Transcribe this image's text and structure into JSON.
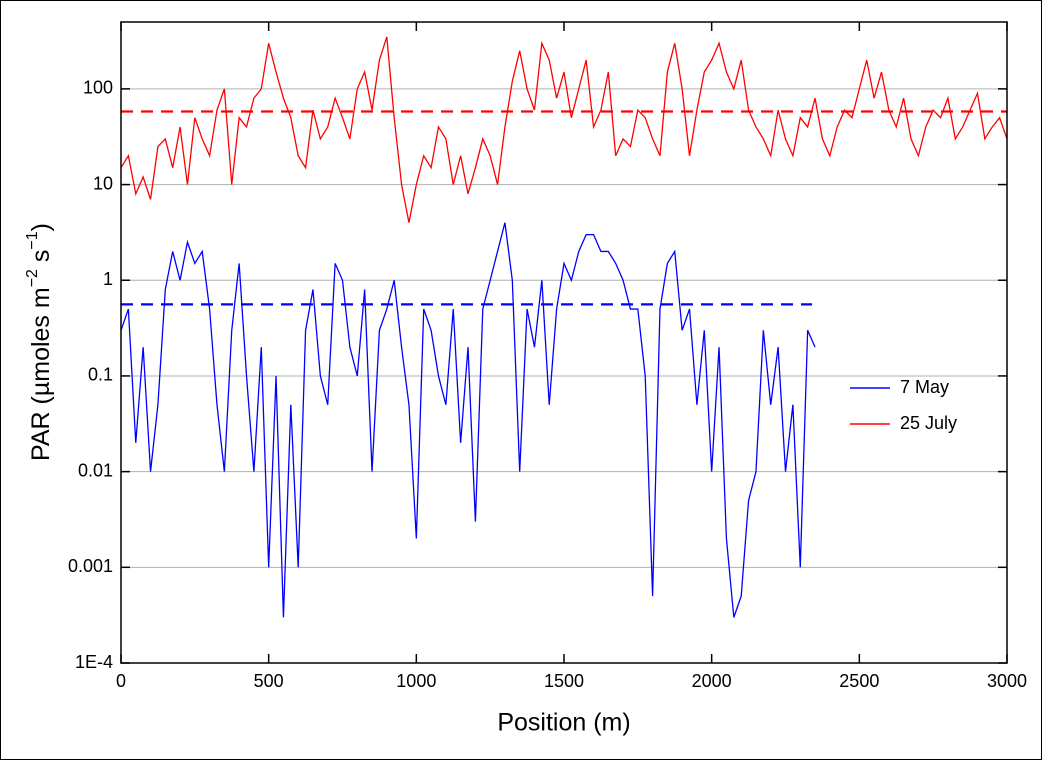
{
  "chart_data": {
    "type": "line",
    "xlabel": "Position (m)",
    "ylabel": [
      "PAR (µmoles m",
      "−2",
      " s",
      "−1",
      ")"
    ],
    "xlim": [
      0,
      3000
    ],
    "xticks": [
      0,
      500,
      1000,
      1500,
      2000,
      2500,
      3000
    ],
    "ylim": [
      0.0001,
      500
    ],
    "log_y": true,
    "yticks": [
      {
        "value": 0.0001,
        "label": "1E-4"
      },
      0.001,
      0.01,
      0.1,
      1,
      10,
      100
    ],
    "grid": true,
    "legend": "right",
    "series": [
      {
        "name": "7 May",
        "color": "#0000ff",
        "x": [
          0,
          25,
          50,
          75,
          100,
          125,
          150,
          175,
          200,
          225,
          250,
          275,
          300,
          325,
          350,
          375,
          400,
          425,
          450,
          475,
          500,
          525,
          550,
          575,
          600,
          625,
          650,
          675,
          700,
          725,
          750,
          775,
          800,
          825,
          850,
          875,
          900,
          925,
          950,
          975,
          1000,
          1025,
          1050,
          1075,
          1100,
          1125,
          1150,
          1175,
          1200,
          1225,
          1250,
          1275,
          1300,
          1325,
          1350,
          1375,
          1400,
          1425,
          1450,
          1475,
          1500,
          1525,
          1550,
          1575,
          1600,
          1625,
          1650,
          1675,
          1700,
          1725,
          1750,
          1775,
          1800,
          1825,
          1850,
          1875,
          1900,
          1925,
          1950,
          1975,
          2000,
          2025,
          2050,
          2075,
          2100,
          2125,
          2150,
          2175,
          2200,
          2225,
          2250,
          2275,
          2300,
          2325,
          2350
        ],
        "values": [
          0.3,
          0.5,
          0.02,
          0.2,
          0.01,
          0.05,
          0.8,
          2,
          1,
          2.5,
          1.5,
          2,
          0.5,
          0.05,
          0.01,
          0.3,
          1.5,
          0.1,
          0.01,
          0.2,
          0.001,
          0.1,
          0.0003,
          0.05,
          0.001,
          0.3,
          0.8,
          0.1,
          0.05,
          1.5,
          1,
          0.2,
          0.1,
          0.8,
          0.01,
          0.3,
          0.5,
          1,
          0.2,
          0.05,
          0.002,
          0.5,
          0.3,
          0.1,
          0.05,
          0.5,
          0.02,
          0.2,
          0.003,
          0.5,
          1,
          2,
          4,
          1,
          0.01,
          0.5,
          0.2,
          1,
          0.05,
          0.5,
          1.5,
          1,
          2,
          3,
          3,
          2,
          2,
          1.5,
          1,
          0.5,
          0.5,
          0.1,
          0.0005,
          0.5,
          1.5,
          2,
          0.3,
          0.5,
          0.05,
          0.3,
          0.01,
          0.2,
          0.002,
          0.0003,
          0.0005,
          0.005,
          0.01,
          0.3,
          0.05,
          0.2,
          0.01,
          0.05,
          0.001,
          0.3,
          0.2
        ]
      },
      {
        "name": "25 July",
        "color": "#ff0000",
        "x": [
          0,
          25,
          50,
          75,
          100,
          125,
          150,
          175,
          200,
          225,
          250,
          275,
          300,
          325,
          350,
          375,
          400,
          425,
          450,
          475,
          500,
          525,
          550,
          575,
          600,
          625,
          650,
          675,
          700,
          725,
          750,
          775,
          800,
          825,
          850,
          875,
          900,
          925,
          950,
          975,
          1000,
          1025,
          1050,
          1075,
          1100,
          1125,
          1150,
          1175,
          1200,
          1225,
          1250,
          1275,
          1300,
          1325,
          1350,
          1375,
          1400,
          1425,
          1450,
          1475,
          1500,
          1525,
          1550,
          1575,
          1600,
          1625,
          1650,
          1675,
          1700,
          1725,
          1750,
          1775,
          1800,
          1825,
          1850,
          1875,
          1900,
          1925,
          1950,
          1975,
          2000,
          2025,
          2050,
          2075,
          2100,
          2125,
          2150,
          2175,
          2200,
          2225,
          2250,
          2275,
          2300,
          2325,
          2350,
          2375,
          2400,
          2425,
          2450,
          2475,
          2500,
          2525,
          2550,
          2575,
          2600,
          2625,
          2650,
          2675,
          2700,
          2725,
          2750,
          2775,
          2800,
          2825,
          2850,
          2875,
          2900,
          2925,
          2950,
          2975,
          3000
        ],
        "values": [
          15,
          20,
          8,
          12,
          7,
          25,
          30,
          15,
          40,
          10,
          50,
          30,
          20,
          60,
          100,
          10,
          50,
          40,
          80,
          100,
          300,
          150,
          80,
          50,
          20,
          15,
          60,
          30,
          40,
          80,
          50,
          30,
          100,
          150,
          60,
          200,
          350,
          50,
          10,
          4,
          10,
          20,
          15,
          40,
          30,
          10,
          20,
          8,
          15,
          30,
          20,
          10,
          40,
          120,
          250,
          100,
          60,
          300,
          200,
          80,
          150,
          50,
          100,
          200,
          40,
          60,
          150,
          20,
          30,
          25,
          60,
          50,
          30,
          20,
          150,
          300,
          100,
          20,
          60,
          150,
          200,
          300,
          150,
          100,
          200,
          60,
          40,
          30,
          20,
          60,
          30,
          20,
          50,
          40,
          80,
          30,
          20,
          40,
          60,
          50,
          100,
          200,
          80,
          150,
          60,
          40,
          80,
          30,
          20,
          40,
          60,
          50,
          80,
          30,
          40,
          60,
          90,
          30,
          40,
          50,
          30
        ]
      }
    ],
    "mean_lines": [
      {
        "value": 0.56,
        "x": [
          0,
          2340
        ],
        "color": "#0000ff"
      },
      {
        "value": 58,
        "x": [
          0,
          3000
        ],
        "color": "#ff0000"
      }
    ]
  }
}
